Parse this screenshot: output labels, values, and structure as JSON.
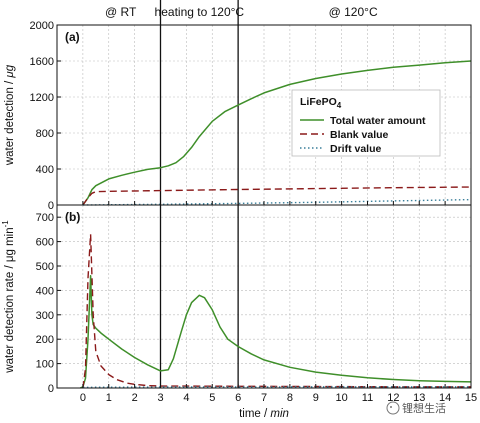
{
  "annotations": {
    "rt": "@ RT",
    "heating": "heating to 120°C",
    "hold": "@ 120°C",
    "rt_x": 0.3,
    "heating_x": 3.0,
    "hold_x": 6.0
  },
  "xlabel_main": "time",
  "xlabel_unit": "min",
  "watermark": "锂想生活",
  "colors": {
    "total": "#3f8f2a",
    "blank": "#8b1a1a",
    "drift": "#3a7f9a",
    "grid": "#bbbbbb"
  },
  "chart_data": [
    {
      "type": "line",
      "panel_label": "(a)",
      "ylabel_main": "water detection",
      "ylabel_unit": "μg",
      "xlim": [
        -1,
        15
      ],
      "ylim": [
        0,
        2000
      ],
      "x_ticks": [
        0,
        1,
        2,
        3,
        4,
        5,
        6,
        7,
        8,
        9,
        10,
        11,
        12,
        13,
        14,
        15
      ],
      "y_ticks": [
        0,
        400,
        800,
        1200,
        1600,
        2000
      ],
      "y_tick_labels": [
        "0",
        "400",
        "800",
        "1200",
        "1600",
        "2000"
      ],
      "grid": true,
      "vertical_lines_x": [
        3,
        6
      ],
      "legend": {
        "title": "LiFePO",
        "title_sub": "4",
        "placement": "center-right"
      },
      "series": [
        {
          "name": "Total water amount",
          "style": "solid",
          "color_key": "total",
          "x": [
            0,
            0.2,
            0.35,
            0.5,
            1,
            1.5,
            2,
            2.5,
            3,
            3.3,
            3.6,
            3.9,
            4.2,
            4.5,
            5,
            5.5,
            6,
            6.5,
            7,
            8,
            9,
            10,
            11,
            12,
            13,
            14,
            15
          ],
          "y": [
            0,
            80,
            170,
            215,
            290,
            330,
            365,
            395,
            415,
            435,
            470,
            540,
            640,
            760,
            930,
            1040,
            1110,
            1180,
            1245,
            1340,
            1405,
            1455,
            1495,
            1530,
            1555,
            1580,
            1600
          ]
        },
        {
          "name": "Blank value",
          "style": "dashed",
          "color_key": "blank",
          "x": [
            0,
            0.2,
            0.35,
            0.5,
            1,
            3,
            6,
            9,
            12,
            15
          ],
          "y": [
            0,
            80,
            130,
            148,
            152,
            160,
            172,
            182,
            192,
            200
          ]
        },
        {
          "name": "Drift value",
          "style": "dotted",
          "color_key": "drift",
          "x": [
            0,
            3,
            6,
            9,
            12,
            15
          ],
          "y": [
            0,
            8,
            18,
            30,
            45,
            60
          ]
        }
      ]
    },
    {
      "type": "line",
      "panel_label": "(b)",
      "ylabel_main": "water detection rate",
      "ylabel_unit": "μg min",
      "ylabel_sup": "-1",
      "xlim": [
        -1,
        15
      ],
      "ylim": [
        0,
        750
      ],
      "x_ticks": [
        0,
        1,
        2,
        3,
        4,
        5,
        6,
        7,
        8,
        9,
        10,
        11,
        12,
        13,
        14,
        15
      ],
      "x_tick_labels": [
        "0",
        "1",
        "2",
        "3",
        "4",
        "5",
        "6",
        "7",
        "8",
        "9",
        "10",
        "11",
        "12",
        "13",
        "14",
        "15"
      ],
      "y_ticks": [
        0,
        100,
        200,
        300,
        400,
        500,
        600,
        700
      ],
      "y_tick_labels": [
        "0",
        "100",
        "200",
        "300",
        "400",
        "500",
        "600",
        "700"
      ],
      "grid": true,
      "vertical_lines_x": [
        3,
        6
      ],
      "series": [
        {
          "name": "Total water amount",
          "style": "solid",
          "color_key": "total",
          "x": [
            -0.1,
            0,
            0.1,
            0.2,
            0.3,
            0.35,
            0.4,
            0.5,
            0.7,
            1,
            1.5,
            2,
            2.5,
            3,
            3.3,
            3.5,
            3.8,
            4,
            4.2,
            4.5,
            4.7,
            5,
            5.3,
            5.6,
            6,
            6.5,
            7,
            8,
            9,
            10,
            11,
            12,
            13,
            14,
            15
          ],
          "y": [
            0,
            5,
            40,
            200,
            460,
            300,
            260,
            245,
            225,
            200,
            160,
            125,
            95,
            70,
            75,
            120,
            230,
            300,
            350,
            380,
            370,
            320,
            250,
            200,
            170,
            140,
            115,
            85,
            65,
            52,
            42,
            35,
            30,
            27,
            25
          ]
        },
        {
          "name": "Blank value",
          "style": "dashed",
          "color_key": "blank",
          "x": [
            0,
            0.1,
            0.2,
            0.3,
            0.4,
            0.5,
            0.7,
            1,
            1.3,
            1.7,
            2,
            2.5,
            3,
            6,
            9,
            12,
            15
          ],
          "y": [
            0,
            80,
            450,
            630,
            300,
            150,
            90,
            55,
            35,
            20,
            15,
            10,
            8,
            7,
            6,
            5,
            5
          ]
        },
        {
          "name": "Drift value",
          "style": "dotted",
          "color_key": "drift",
          "x": [
            0,
            3,
            6,
            9,
            12,
            15
          ],
          "y": [
            3,
            4,
            4,
            5,
            5,
            5
          ]
        }
      ]
    }
  ]
}
